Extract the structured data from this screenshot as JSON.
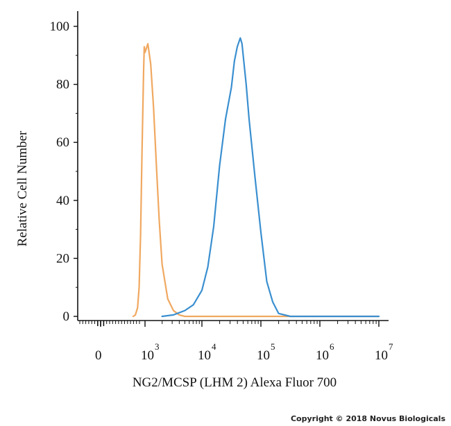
{
  "chart_data": {
    "type": "line",
    "xlabel": "NG2/MCSP (LHM 2) Alexa Fluor 700",
    "ylabel": "Relative Cell Number",
    "xscale": "biexponential",
    "ylim": [
      0,
      100
    ],
    "y_ticks": [
      0,
      20,
      40,
      60,
      80,
      100
    ],
    "x_ticks": [
      {
        "base": "0",
        "exp": "",
        "value": 0
      },
      {
        "base": "10",
        "exp": "3",
        "value": 3
      },
      {
        "base": "10",
        "exp": "4",
        "value": 4
      },
      {
        "base": "10",
        "exp": "5",
        "value": 5
      },
      {
        "base": "10",
        "exp": "6",
        "value": 6
      },
      {
        "base": "10",
        "exp": "7",
        "value": 7
      }
    ],
    "grid": false,
    "series": [
      {
        "color": "#f0a860",
        "x": [
          2.2,
          2.35,
          2.5,
          2.6,
          2.7,
          2.8,
          2.9,
          2.95,
          3.0,
          3.05,
          3.1,
          3.15,
          3.2,
          3.25,
          3.3,
          3.4,
          3.5,
          3.6,
          3.7,
          3.85,
          4.0,
          4.5,
          5.0,
          5.5,
          6.0,
          6.5,
          7.0
        ],
        "y": [
          0,
          0.5,
          3,
          10,
          28,
          57,
          84,
          93,
          91,
          94,
          87,
          72,
          52,
          33,
          18,
          6,
          2,
          0.5,
          0,
          0,
          0,
          0,
          0,
          0,
          0,
          0,
          0
        ]
      },
      {
        "color": "#3a8fd0",
        "x": [
          3.3,
          3.5,
          3.7,
          3.85,
          4.0,
          4.1,
          4.2,
          4.3,
          4.4,
          4.5,
          4.55,
          4.6,
          4.65,
          4.68,
          4.7,
          4.75,
          4.8,
          4.9,
          5.0,
          5.1,
          5.2,
          5.3,
          5.5,
          6.0,
          6.5,
          7.0
        ],
        "y": [
          0,
          0.5,
          2,
          4,
          9,
          17,
          31,
          52,
          68,
          79,
          88,
          93,
          96,
          94,
          90,
          80,
          68,
          48,
          29,
          12,
          5,
          1,
          0,
          0,
          0,
          0
        ]
      }
    ]
  },
  "copyright": "Copyright © 2018 Novus Biologicals"
}
